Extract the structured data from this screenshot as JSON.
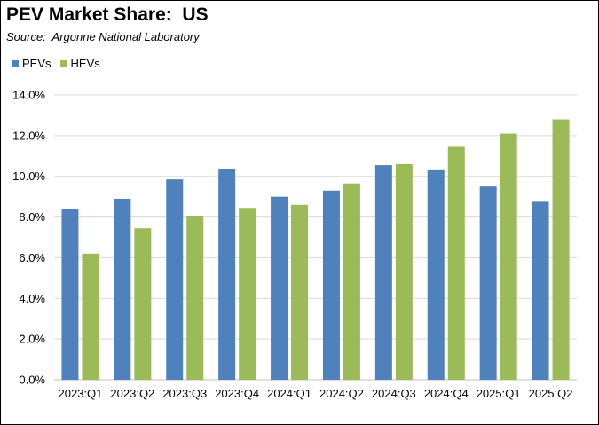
{
  "title": "PEV Market Share:  US",
  "subtitle": "Source:  Argonne National Laboratory",
  "colors": {
    "PEVs": "#4f81bd",
    "HEVs": "#9bbb59",
    "grid": "#d9d9d9",
    "axis": "#bfbfbf"
  },
  "chart_data": {
    "type": "bar",
    "title": "PEV Market Share:  US",
    "subtitle": "Source:  Argonne National Laboratory",
    "categories": [
      "2023:Q1",
      "2023:Q2",
      "2023:Q3",
      "2023:Q4",
      "2024:Q1",
      "2024:Q2",
      "2024:Q3",
      "2024:Q4",
      "2025:Q1",
      "2025:Q2"
    ],
    "series": [
      {
        "name": "PEVs",
        "values": [
          8.4,
          8.9,
          9.85,
          10.35,
          9.0,
          9.3,
          10.55,
          10.3,
          9.5,
          8.75
        ]
      },
      {
        "name": "HEVs",
        "values": [
          6.2,
          7.45,
          8.05,
          8.45,
          8.6,
          9.65,
          10.6,
          11.45,
          12.1,
          12.8
        ]
      }
    ],
    "yticks": [
      "0.0%",
      "2.0%",
      "4.0%",
      "6.0%",
      "8.0%",
      "10.0%",
      "12.0%",
      "14.0%"
    ],
    "ylim": [
      0,
      14
    ],
    "grid": true,
    "legend_position": "top-left",
    "xlabel": "",
    "ylabel": ""
  }
}
